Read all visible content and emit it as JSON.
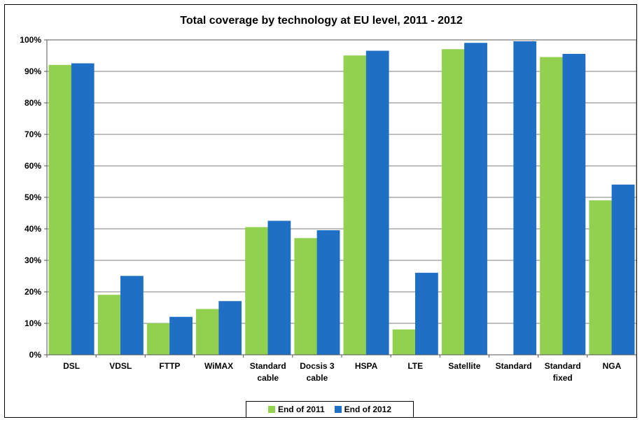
{
  "chart_data": {
    "type": "bar",
    "title": "Total coverage by technology at EU level, 2011 - 2012",
    "xlabel": "",
    "ylabel": "",
    "ylim": [
      0,
      100
    ],
    "yticks": [
      "0%",
      "10%",
      "20%",
      "30%",
      "40%",
      "50%",
      "60%",
      "70%",
      "80%",
      "90%",
      "100%"
    ],
    "categories": [
      [
        "DSL"
      ],
      [
        "VDSL"
      ],
      [
        "FTTP"
      ],
      [
        "WiMAX"
      ],
      [
        "Standard",
        "cable"
      ],
      [
        "Docsis 3",
        "cable"
      ],
      [
        "HSPA"
      ],
      [
        "LTE"
      ],
      [
        "Satellite"
      ],
      [
        "Standard"
      ],
      [
        "Standard",
        "fixed"
      ],
      [
        "NGA"
      ]
    ],
    "series": [
      {
        "name": "End of 2011",
        "color": "#92d050",
        "values": [
          92,
          19,
          10,
          14.5,
          40.5,
          37,
          95,
          8,
          97,
          null,
          94.5,
          49
        ]
      },
      {
        "name": "End of 2012",
        "color": "#1f6fc5",
        "values": [
          92.5,
          25,
          12,
          17,
          42.5,
          39.5,
          96.5,
          26,
          99,
          99.5,
          95.5,
          54
        ]
      }
    ],
    "grid": true,
    "legend": "bottom-center"
  }
}
